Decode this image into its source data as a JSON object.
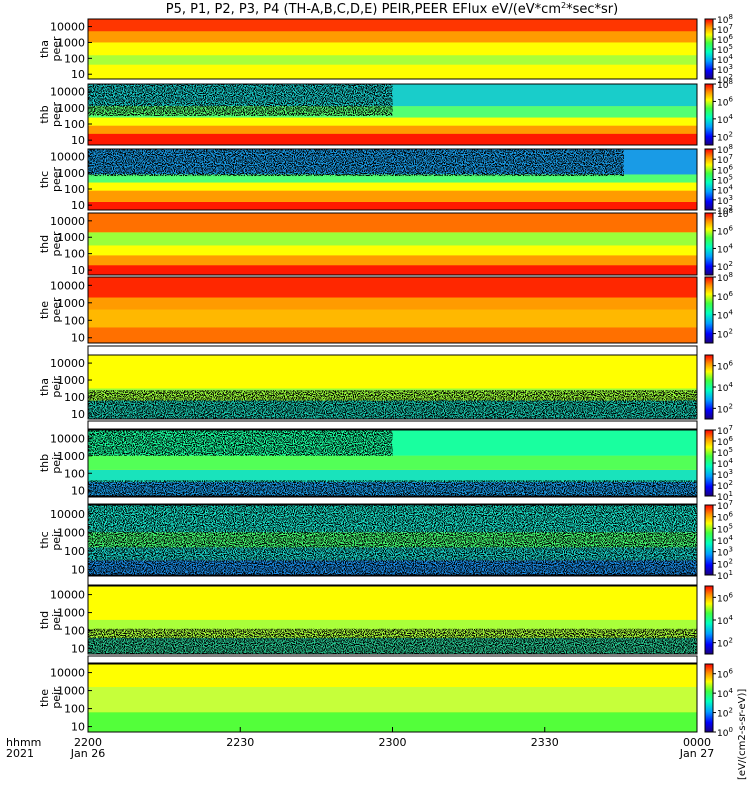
{
  "title_prefix": "P5, P1, P2, P3, P4 (TH-A,B,C,D,E) PEIR,PEER EFlux eV/(eV*cm",
  "title_sup": "2",
  "title_suffix": "*sec*sr)",
  "time_axis": {
    "row_labels": [
      "hhmm",
      "2021"
    ],
    "ticks": [
      {
        "label": "2200",
        "sub": "Jan 26"
      },
      {
        "label": "2230",
        "sub": ""
      },
      {
        "label": "2300",
        "sub": ""
      },
      {
        "label": "2330",
        "sub": ""
      },
      {
        "label": "0000",
        "sub": "Jan 27"
      }
    ]
  },
  "y_ticks": [
    "10000",
    "1000",
    "100",
    "10"
  ],
  "colorbar_unit_text": "[eV/(cm2-s-sr-eV)]",
  "colors": {
    "scale": [
      "#1a0080",
      "#0000ff",
      "#00a0ff",
      "#00ffc0",
      "#40ff40",
      "#ffff00",
      "#ff9000",
      "#ff0000"
    ],
    "low_flux": "#000000"
  },
  "chart_data": {
    "type": "heatmap",
    "title": "P5, P1, P2, P3, P4 (TH-A,B,C,D,E) PEIR,PEER EFlux eV/(eV*cm2*sec*sr)",
    "xlabel": "hhmm 2021",
    "x_range": [
      "2021-01-26 22:00",
      "2021-01-27 00:00"
    ],
    "y_scale": "log",
    "ylim": [
      5,
      30000
    ],
    "panels": [
      {
        "label": [
          "tha",
          "peer"
        ],
        "cbar_ticks": [
          "10^8",
          "10^7",
          "10^6",
          "10^5",
          "10^4",
          "10^3",
          "10^2"
        ],
        "cbar_range": [
          2,
          8
        ]
      },
      {
        "label": [
          "thb",
          "peer"
        ],
        "cbar_ticks": [
          "10^8",
          "10^6",
          "10^4",
          "10^2"
        ],
        "cbar_range": [
          1,
          8
        ]
      },
      {
        "label": [
          "thc",
          "peer"
        ],
        "cbar_ticks": [
          "10^8",
          "10^7",
          "10^6",
          "10^5",
          "10^4",
          "10^3",
          "10^2"
        ],
        "cbar_range": [
          2,
          8
        ]
      },
      {
        "label": [
          "thd",
          "peer"
        ],
        "cbar_ticks": [
          "10^8",
          "10^6",
          "10^4",
          "10^2"
        ],
        "cbar_range": [
          1,
          8
        ]
      },
      {
        "label": [
          "the",
          "peer"
        ],
        "cbar_ticks": [
          "10^8",
          "10^6",
          "10^4",
          "10^2"
        ],
        "cbar_range": [
          1,
          8
        ]
      },
      {
        "label": [
          "tha",
          "peir"
        ],
        "cbar_ticks": [
          "10^6",
          "10^4",
          "10^2"
        ],
        "cbar_range": [
          1,
          7
        ]
      },
      {
        "label": [
          "thb",
          "peir"
        ],
        "cbar_ticks": [
          "10^7",
          "10^6",
          "10^5",
          "10^4",
          "10^3",
          "10^2",
          "10^1"
        ],
        "cbar_range": [
          1,
          7
        ]
      },
      {
        "label": [
          "thc",
          "peir"
        ],
        "cbar_ticks": [
          "10^7",
          "10^6",
          "10^5",
          "10^4",
          "10^3",
          "10^2",
          "10^1"
        ],
        "cbar_range": [
          1,
          7
        ]
      },
      {
        "label": [
          "thd",
          "peir"
        ],
        "cbar_ticks": [
          "10^6",
          "10^4",
          "10^2"
        ],
        "cbar_range": [
          1,
          7
        ]
      },
      {
        "label": [
          "the",
          "peir"
        ],
        "cbar_ticks": [
          "10^6",
          "10^4",
          "10^2",
          "10^0"
        ],
        "cbar_range": [
          0,
          7
        ]
      }
    ]
  }
}
